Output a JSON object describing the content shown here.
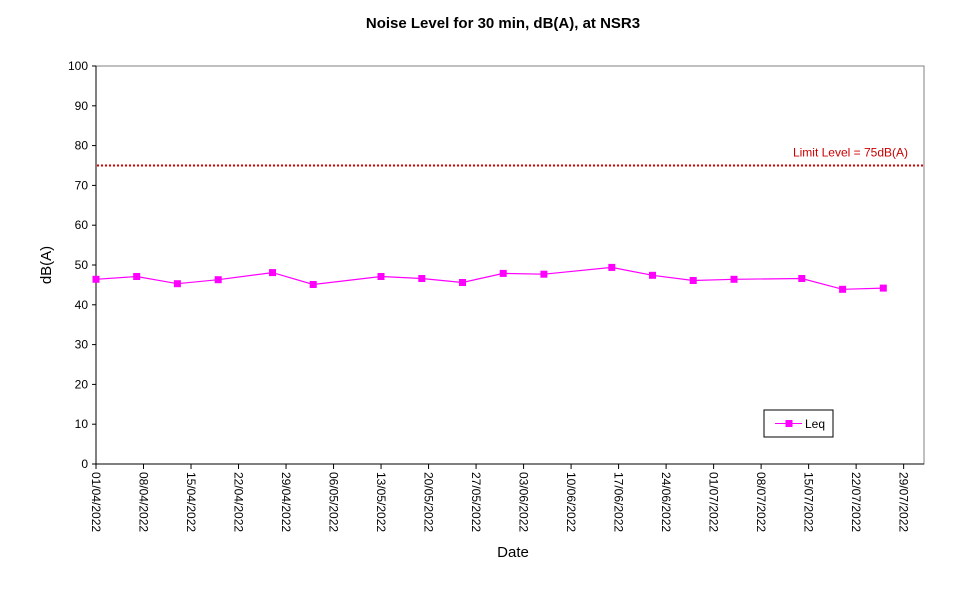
{
  "chart_data": {
    "type": "line",
    "title": "Noise Level for 30 min, dB(A), at NSR3",
    "xlabel": "Date",
    "ylabel": "dB(A)",
    "ylim": [
      0,
      100
    ],
    "yticks": [
      0,
      10,
      20,
      30,
      40,
      50,
      60,
      70,
      80,
      90,
      100
    ],
    "xlim": [
      "2022-04-01",
      "2022-08-01"
    ],
    "xtick_labels": [
      "01/04/2022",
      "08/04/2022",
      "15/04/2022",
      "22/04/2022",
      "29/04/2022",
      "06/05/2022",
      "13/05/2022",
      "20/05/2022",
      "27/05/2022",
      "03/06/2022",
      "10/06/2022",
      "17/06/2022",
      "24/06/2022",
      "01/07/2022",
      "08/07/2022",
      "15/07/2022",
      "22/07/2022",
      "29/07/2022"
    ],
    "grid": false,
    "legend": {
      "position": "bottom-right"
    },
    "series": [
      {
        "name": "Leq",
        "color": "#ff00ff",
        "marker": "square",
        "points": [
          {
            "x": "2022-04-01",
            "y": 46.4
          },
          {
            "x": "2022-04-07",
            "y": 47.1
          },
          {
            "x": "2022-04-13",
            "y": 45.3
          },
          {
            "x": "2022-04-19",
            "y": 46.3
          },
          {
            "x": "2022-04-27",
            "y": 48.1
          },
          {
            "x": "2022-05-03",
            "y": 45.1
          },
          {
            "x": "2022-05-13",
            "y": 47.1
          },
          {
            "x": "2022-05-19",
            "y": 46.6
          },
          {
            "x": "2022-05-25",
            "y": 45.6
          },
          {
            "x": "2022-05-31",
            "y": 47.9
          },
          {
            "x": "2022-06-06",
            "y": 47.7
          },
          {
            "x": "2022-06-16",
            "y": 49.4
          },
          {
            "x": "2022-06-22",
            "y": 47.4
          },
          {
            "x": "2022-06-28",
            "y": 46.1
          },
          {
            "x": "2022-07-04",
            "y": 46.4
          },
          {
            "x": "2022-07-14",
            "y": 46.6
          },
          {
            "x": "2022-07-20",
            "y": 43.9
          },
          {
            "x": "2022-07-26",
            "y": 44.2
          }
        ]
      }
    ],
    "limit_line": {
      "label": "Limit Level  = 75dB(A)",
      "value": 75,
      "color": "#cc0000"
    }
  }
}
